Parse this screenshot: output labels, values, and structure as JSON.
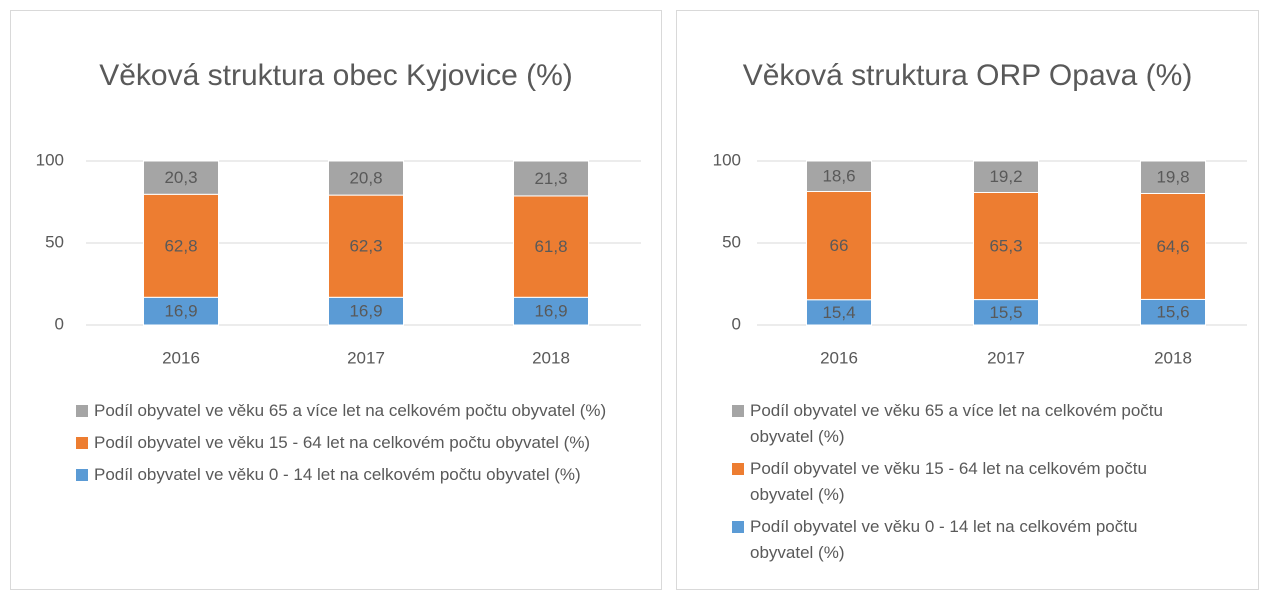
{
  "chart_data": [
    {
      "type": "stacked_bar",
      "title": "Věková struktura obec Kyjovice (%)",
      "categories": [
        "2016",
        "2017",
        "2018"
      ],
      "ylim": [
        0,
        100
      ],
      "yticks": [
        0,
        50,
        100
      ],
      "grid": true,
      "series": [
        {
          "name": "Podíl obyvatel ve věku 65 a více let na celkovém počtu obyvatel (%)",
          "color": "#a5a5a5",
          "values": [
            20.3,
            20.8,
            21.3
          ],
          "value_labels": [
            "20,3",
            "20,8",
            "21,3"
          ]
        },
        {
          "name": "Podíl obyvatel ve věku 15 - 64 let na celkovém počtu obyvatel (%)",
          "color": "#ed7d31",
          "values": [
            62.8,
            62.3,
            61.8
          ],
          "value_labels": [
            "62,8",
            "62,3",
            "61,8"
          ]
        },
        {
          "name": "Podíl obyvatel ve věku 0 - 14 let na celkovém počtu obyvatel (%)",
          "color": "#5b9bd5",
          "values": [
            16.9,
            16.9,
            16.9
          ],
          "value_labels": [
            "16,9",
            "16,9",
            "16,9"
          ]
        }
      ]
    },
    {
      "type": "stacked_bar",
      "title": "Věková struktura ORP Opava (%)",
      "categories": [
        "2016",
        "2017",
        "2018"
      ],
      "ylim": [
        0,
        100
      ],
      "yticks": [
        0,
        50,
        100
      ],
      "grid": true,
      "series": [
        {
          "name": "Podíl obyvatel ve věku 65 a více let na celkovém počtu obyvatel (%)",
          "color": "#a5a5a5",
          "values": [
            18.6,
            19.2,
            19.8
          ],
          "value_labels": [
            "18,6",
            "19,2",
            "19,8"
          ]
        },
        {
          "name": "Podíl obyvatel ve věku 15 - 64 let na celkovém počtu obyvatel (%)",
          "color": "#ed7d31",
          "values": [
            66,
            65.3,
            64.6
          ],
          "value_labels": [
            "66",
            "65,3",
            "64,6"
          ]
        },
        {
          "name": "Podíl obyvatel ve věku 0 - 14 let na celkovém počtu obyvatel (%)",
          "color": "#5b9bd5",
          "values": [
            15.4,
            15.5,
            15.6
          ],
          "value_labels": [
            "15,4",
            "15,5",
            "15,6"
          ]
        }
      ]
    }
  ]
}
